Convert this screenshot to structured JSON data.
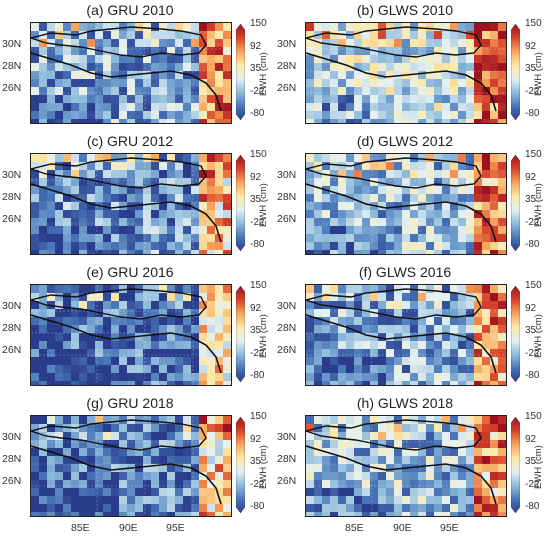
{
  "panels": [
    {
      "title": "(a) GRU 2010",
      "seed": 11,
      "bias": 0.0
    },
    {
      "title": "(b) GLWS 2010",
      "seed": 23,
      "bias": 0.15
    },
    {
      "title": "(c) GRU 2012",
      "seed": 37,
      "bias": -0.05
    },
    {
      "title": "(d) GLWS 2012",
      "seed": 41,
      "bias": 0.05
    },
    {
      "title": "(e) GRU 2016",
      "seed": 53,
      "bias": -0.15
    },
    {
      "title": "(f) GLWS 2016",
      "seed": 67,
      "bias": 0.0
    },
    {
      "title": "(g) GRU 2018",
      "seed": 71,
      "bias": -0.1
    },
    {
      "title": "(h) GLWS 2018",
      "seed": 89,
      "bias": 0.05
    }
  ],
  "y_ticks": [
    "30N",
    "28N",
    "26N"
  ],
  "x_ticks": [
    "85E",
    "90E",
    "95E"
  ],
  "colorbar": {
    "label": "EWH (cm)",
    "ticks": [
      "150",
      "92",
      "35",
      "-22",
      "-80"
    ],
    "colors": [
      "#2a3c8c",
      "#4a76b8",
      "#8fbbdb",
      "#e4f0f2",
      "#fbe9a8",
      "#f6a35a",
      "#d6442c",
      "#9e1121"
    ]
  }
}
